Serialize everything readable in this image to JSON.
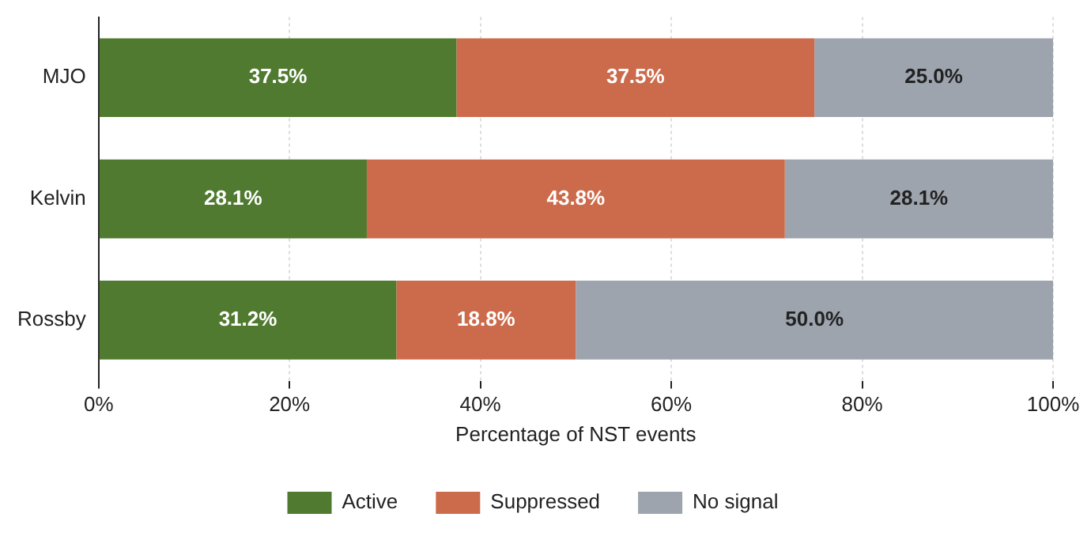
{
  "chart_data": {
    "type": "bar",
    "orientation": "horizontal",
    "stacked": true,
    "xlabel": "Percentage of NST events",
    "categories": [
      "MJO",
      "Kelvin",
      "Rossby"
    ],
    "series": [
      {
        "name": "Active",
        "color": "#507a30",
        "values": [
          37.5,
          28.1,
          31.2
        ],
        "value_labels": [
          "37.5%",
          "28.1%",
          "31.2%"
        ]
      },
      {
        "name": "Suppressed",
        "color": "#cc6b4b",
        "values": [
          37.5,
          43.8,
          18.8
        ],
        "value_labels": [
          "37.5%",
          "43.8%",
          "18.8%"
        ]
      },
      {
        "name": "No signal",
        "color": "#9da4ae",
        "values": [
          25.0,
          28.1,
          50.0
        ],
        "value_labels": [
          "25.0%",
          "28.1%",
          "50.0%"
        ]
      }
    ],
    "xlim": [
      0,
      100
    ],
    "xticks": [
      {
        "value": 0,
        "label": "0%"
      },
      {
        "value": 20,
        "label": "20%"
      },
      {
        "value": 40,
        "label": "40%"
      },
      {
        "value": 60,
        "label": "60%"
      },
      {
        "value": 80,
        "label": "80%"
      },
      {
        "value": 100,
        "label": "100%"
      }
    ],
    "grid": "x",
    "legend": "bottom"
  }
}
